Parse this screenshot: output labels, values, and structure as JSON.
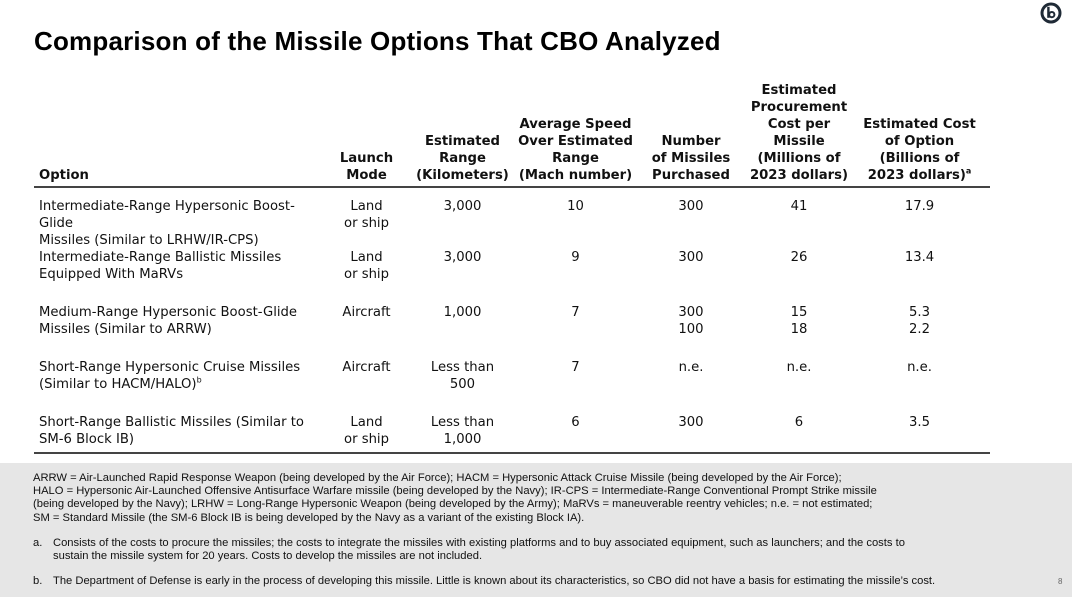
{
  "title": "Comparison of the Missile Options That CBO Analyzed",
  "logo": {
    "icon": "cbo-logo-icon"
  },
  "table": {
    "headers": {
      "option": "Option",
      "launch_mode": [
        "Launch",
        "Mode"
      ],
      "range": [
        "Estimated",
        "Range",
        "(Kilometers)"
      ],
      "speed": [
        "Average Speed",
        "Over Estimated",
        "Range",
        "(Mach number)"
      ],
      "number": [
        "Number",
        "of Missiles",
        "Purchased"
      ],
      "cost_per": [
        "Estimated",
        "Procurement",
        "Cost per Missile",
        "(Millions of",
        "2023 dollars)"
      ],
      "cost_option": [
        "Estimated Cost",
        "of Option",
        "(Billions of",
        "2023 dollars)"
      ],
      "cost_option_note": "a"
    },
    "rows": [
      {
        "option": [
          "Intermediate-Range Hypersonic Boost-Glide",
          "Missiles (Similar to LRHW/IR-CPS)"
        ],
        "option_note": "",
        "launch_mode": [
          "Land",
          "or ship"
        ],
        "range": [
          "3,000"
        ],
        "speed": [
          "10"
        ],
        "number": [
          "300"
        ],
        "cost_per": [
          "41"
        ],
        "cost_option": [
          "17.9"
        ]
      },
      {
        "option": [
          "Intermediate-Range Ballistic Missiles",
          "Equipped With MaRVs"
        ],
        "option_note": "",
        "launch_mode": [
          "Land",
          "or ship"
        ],
        "range": [
          "3,000"
        ],
        "speed": [
          "9"
        ],
        "number": [
          "300"
        ],
        "cost_per": [
          "26"
        ],
        "cost_option": [
          "13.4"
        ]
      },
      {
        "option": [
          "Medium-Range Hypersonic Boost-Glide",
          "Missiles (Similar to ARRW)"
        ],
        "option_note": "",
        "launch_mode": [
          "Aircraft"
        ],
        "range": [
          "1,000"
        ],
        "speed": [
          "7"
        ],
        "number": [
          "300",
          "100"
        ],
        "cost_per": [
          "15",
          "18"
        ],
        "cost_option": [
          "5.3",
          "2.2"
        ]
      },
      {
        "option": [
          "Short-Range Hypersonic Cruise Missiles",
          "(Similar to HACM/HALO)"
        ],
        "option_note": "b",
        "launch_mode": [
          "Aircraft"
        ],
        "range": [
          "Less than",
          "500"
        ],
        "speed": [
          "7"
        ],
        "number": [
          "n.e."
        ],
        "cost_per": [
          "n.e."
        ],
        "cost_option": [
          "n.e."
        ]
      },
      {
        "option": [
          "Short-Range Ballistic Missiles (Similar to",
          "SM-6 Block IB)"
        ],
        "option_note": "",
        "launch_mode": [
          "Land",
          "or ship"
        ],
        "range": [
          "Less than",
          "1,000"
        ],
        "speed": [
          "6"
        ],
        "number": [
          "300"
        ],
        "cost_per": [
          "6"
        ],
        "cost_option": [
          "3.5"
        ]
      }
    ]
  },
  "footer": {
    "abbreviations": [
      "ARRW = Air-Launched Rapid Response Weapon (being developed by the Air Force); HACM = Hypersonic Attack Cruise Missile (being developed by the Air Force);",
      "HALO = Hypersonic Air-Launched Offensive Antisurface Warfare missile (being developed by the Navy); IR-CPS = Intermediate-Range Conventional Prompt Strike missile",
      "(being developed by the Navy); LRHW = Long-Range Hypersonic Weapon (being developed by the Army); MaRVs = maneuverable reentry vehicles; n.e. = not estimated;",
      "SM = Standard Missile (the SM-6 Block IB is being developed by the Navy as a variant of the existing Block IA)."
    ],
    "notes": [
      {
        "mark": "a.",
        "lines": [
          "Consists of the costs to procure the missiles; the costs to integrate the missiles with existing platforms and to buy associated equipment, such as launchers; and the costs to",
          "sustain the missile system for 20 years. Costs to develop the missiles are not included."
        ]
      },
      {
        "mark": "b.",
        "lines": [
          "The Department of Defense is early in the process of developing this missile. Little is known about its characteristics, so CBO did not have a basis for estimating the missile’s cost."
        ]
      }
    ],
    "page_number": "8"
  }
}
